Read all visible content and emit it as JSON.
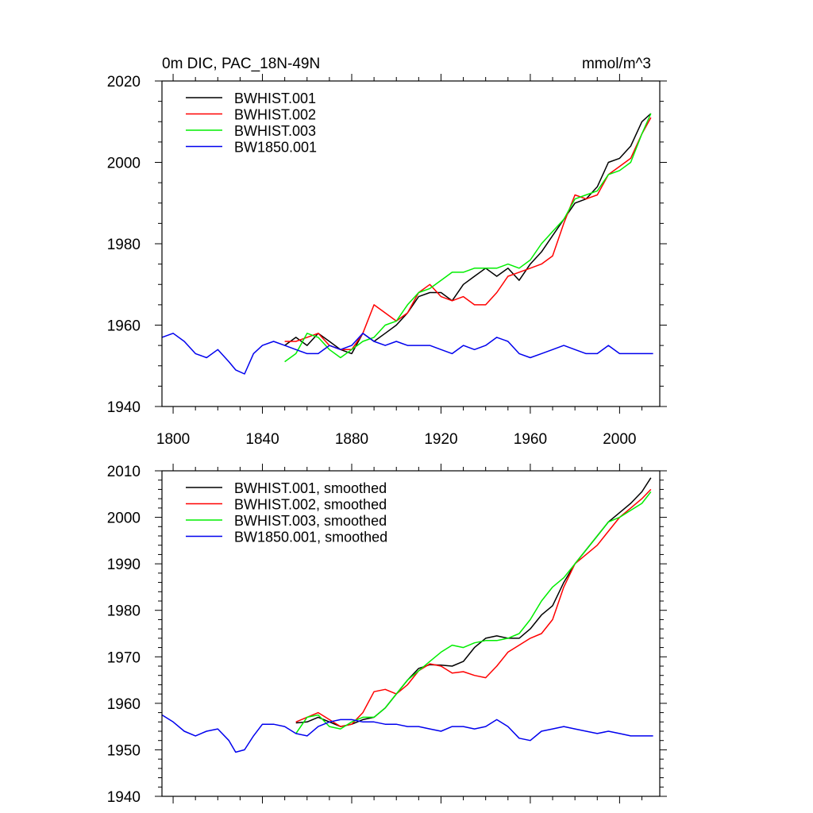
{
  "chart_data": [
    {
      "type": "line",
      "title_left": "0m DIC, PAC_18N-49N",
      "title_right": "mmol/m^3",
      "xlim": [
        1795,
        2018
      ],
      "ylim": [
        1940,
        2020
      ],
      "x_ticks": [
        1800,
        1840,
        1880,
        1920,
        1960,
        2000
      ],
      "y_ticks": [
        1940,
        1960,
        1980,
        2000,
        2020
      ],
      "legend_position": "top-left",
      "series": [
        {
          "name": "BWHIST.001",
          "color": "#000000",
          "x": [
            1850,
            1855,
            1860,
            1865,
            1870,
            1875,
            1880,
            1885,
            1890,
            1895,
            1900,
            1905,
            1910,
            1915,
            1920,
            1925,
            1930,
            1935,
            1940,
            1945,
            1950,
            1955,
            1960,
            1965,
            1970,
            1975,
            1980,
            1985,
            1990,
            1995,
            2000,
            2005,
            2010,
            2014
          ],
          "y": [
            1955,
            1957,
            1955,
            1958,
            1956,
            1954,
            1953,
            1958,
            1956,
            1958,
            1960,
            1963,
            1967,
            1968,
            1968,
            1966,
            1970,
            1972,
            1974,
            1972,
            1974,
            1971,
            1975,
            1978,
            1982,
            1986,
            1990,
            1991,
            1994,
            2000,
            2001,
            2004,
            2010,
            2012
          ]
        },
        {
          "name": "BWHIST.002",
          "color": "#ff0000",
          "x": [
            1850,
            1855,
            1860,
            1865,
            1870,
            1875,
            1880,
            1885,
            1890,
            1895,
            1900,
            1905,
            1910,
            1915,
            1920,
            1925,
            1930,
            1935,
            1940,
            1945,
            1950,
            1955,
            1960,
            1965,
            1970,
            1975,
            1980,
            1985,
            1990,
            1995,
            2000,
            2005,
            2010,
            2014
          ],
          "y": [
            1956,
            1956,
            1957,
            1958,
            1955,
            1954,
            1954,
            1958,
            1965,
            1963,
            1961,
            1963,
            1968,
            1970,
            1967,
            1966,
            1967,
            1965,
            1965,
            1968,
            1972,
            1973,
            1974,
            1975,
            1977,
            1985,
            1992,
            1991,
            1992,
            1997,
            1999,
            2001,
            2007,
            2011
          ]
        },
        {
          "name": "BWHIST.003",
          "color": "#00ee00",
          "x": [
            1850,
            1855,
            1860,
            1865,
            1870,
            1875,
            1880,
            1885,
            1890,
            1895,
            1900,
            1905,
            1910,
            1915,
            1920,
            1925,
            1930,
            1935,
            1940,
            1945,
            1950,
            1955,
            1960,
            1965,
            1970,
            1975,
            1980,
            1985,
            1990,
            1995,
            2000,
            2005,
            2010,
            2014
          ],
          "y": [
            1951,
            1953,
            1958,
            1957,
            1954,
            1952,
            1954,
            1956,
            1957,
            1960,
            1961,
            1965,
            1968,
            1969,
            1971,
            1973,
            1973,
            1974,
            1974,
            1974,
            1975,
            1974,
            1976,
            1980,
            1983,
            1986,
            1991,
            1992,
            1993,
            1997,
            1998,
            2000,
            2007,
            2012
          ]
        },
        {
          "name": "BW1850.001",
          "color": "#0000ee",
          "x": [
            1795,
            1800,
            1805,
            1810,
            1815,
            1820,
            1825,
            1828,
            1832,
            1836,
            1840,
            1845,
            1850,
            1855,
            1860,
            1865,
            1870,
            1875,
            1880,
            1885,
            1890,
            1895,
            1900,
            1905,
            1910,
            1915,
            1920,
            1925,
            1930,
            1935,
            1940,
            1945,
            1950,
            1955,
            1960,
            1965,
            1970,
            1975,
            1980,
            1985,
            1990,
            1995,
            2000,
            2005,
            2010,
            2015
          ],
          "y": [
            1957,
            1958,
            1956,
            1953,
            1952,
            1954,
            1951,
            1949,
            1948,
            1953,
            1955,
            1956,
            1955,
            1954,
            1953,
            1953,
            1955,
            1954,
            1955,
            1958,
            1956,
            1955,
            1956,
            1955,
            1955,
            1955,
            1954,
            1953,
            1955,
            1954,
            1955,
            1957,
            1956,
            1953,
            1952,
            1953,
            1954,
            1955,
            1954,
            1953,
            1953,
            1955,
            1953,
            1953,
            1953,
            1953
          ]
        }
      ]
    },
    {
      "type": "line",
      "xlim": [
        1795,
        2018
      ],
      "ylim": [
        1940,
        2010
      ],
      "y_ticks": [
        1940,
        1950,
        1960,
        1970,
        1980,
        1990,
        2000,
        2010
      ],
      "legend_position": "top-left",
      "series": [
        {
          "name": "BWHIST.001, smoothed",
          "color": "#000000",
          "x": [
            1855,
            1860,
            1865,
            1870,
            1875,
            1880,
            1885,
            1890,
            1895,
            1900,
            1905,
            1910,
            1915,
            1920,
            1925,
            1930,
            1935,
            1940,
            1945,
            1950,
            1955,
            1960,
            1965,
            1970,
            1975,
            1980,
            1985,
            1990,
            1995,
            2000,
            2005,
            2010,
            2014
          ],
          "y": [
            1955.8,
            1956,
            1957,
            1956,
            1955,
            1955.5,
            1956.5,
            1957,
            1959,
            1962,
            1965,
            1967.5,
            1968.3,
            1968.2,
            1968,
            1969,
            1972,
            1974,
            1974.5,
            1974,
            1974,
            1976,
            1979,
            1981,
            1986,
            1990,
            1993,
            1996,
            1999,
            2001,
            2003,
            2005.5,
            2008.5
          ]
        },
        {
          "name": "BWHIST.002, smoothed",
          "color": "#ff0000",
          "x": [
            1855,
            1860,
            1865,
            1870,
            1875,
            1880,
            1885,
            1890,
            1895,
            1900,
            1905,
            1910,
            1915,
            1920,
            1925,
            1930,
            1935,
            1940,
            1945,
            1950,
            1955,
            1960,
            1965,
            1970,
            1975,
            1980,
            1985,
            1990,
            1995,
            2000,
            2005,
            2010,
            2014
          ],
          "y": [
            1956,
            1957,
            1958,
            1956.5,
            1955,
            1955.5,
            1958,
            1962.5,
            1963,
            1962,
            1964,
            1967,
            1968.5,
            1968,
            1966.5,
            1966.8,
            1966,
            1965.5,
            1968,
            1971,
            1972.5,
            1974,
            1975,
            1978,
            1985,
            1990,
            1992,
            1994,
            1997,
            2000,
            2002,
            2004,
            2006
          ]
        },
        {
          "name": "BWHIST.003, smoothed",
          "color": "#00ee00",
          "x": [
            1855,
            1860,
            1865,
            1870,
            1875,
            1880,
            1885,
            1890,
            1895,
            1900,
            1905,
            1910,
            1915,
            1920,
            1925,
            1930,
            1935,
            1940,
            1945,
            1950,
            1955,
            1960,
            1965,
            1970,
            1975,
            1980,
            1985,
            1990,
            1995,
            2000,
            2005,
            2010,
            2014
          ],
          "y": [
            1953.5,
            1957,
            1957.5,
            1955,
            1954.5,
            1956,
            1957,
            1957,
            1959,
            1962,
            1965,
            1967,
            1969,
            1971,
            1972.5,
            1972,
            1973,
            1973.5,
            1973.5,
            1974,
            1975,
            1978,
            1982,
            1985,
            1987,
            1990,
            1993,
            1996,
            1999,
            2000,
            2001.5,
            2003,
            2005.5
          ]
        },
        {
          "name": "BW1850.001, smoothed",
          "color": "#0000ee",
          "x": [
            1795,
            1800,
            1805,
            1810,
            1815,
            1820,
            1825,
            1828,
            1832,
            1836,
            1840,
            1845,
            1850,
            1855,
            1860,
            1865,
            1870,
            1875,
            1880,
            1885,
            1890,
            1895,
            1900,
            1905,
            1910,
            1915,
            1920,
            1925,
            1930,
            1935,
            1940,
            1945,
            1950,
            1955,
            1960,
            1965,
            1970,
            1975,
            1980,
            1985,
            1990,
            1995,
            2000,
            2005,
            2010,
            2015
          ],
          "y": [
            1957.5,
            1956,
            1954,
            1953,
            1954,
            1954.5,
            1952,
            1949.5,
            1950,
            1953,
            1955.5,
            1955.5,
            1955,
            1953.5,
            1953,
            1955,
            1956,
            1956.5,
            1956.5,
            1956,
            1956,
            1955.5,
            1955.5,
            1955,
            1955,
            1954.5,
            1954,
            1955,
            1955,
            1954.5,
            1955,
            1956.5,
            1955,
            1952.5,
            1952,
            1954,
            1954.5,
            1955,
            1954.5,
            1954,
            1953.5,
            1954,
            1953.5,
            1953,
            1953,
            1953
          ]
        }
      ]
    }
  ]
}
